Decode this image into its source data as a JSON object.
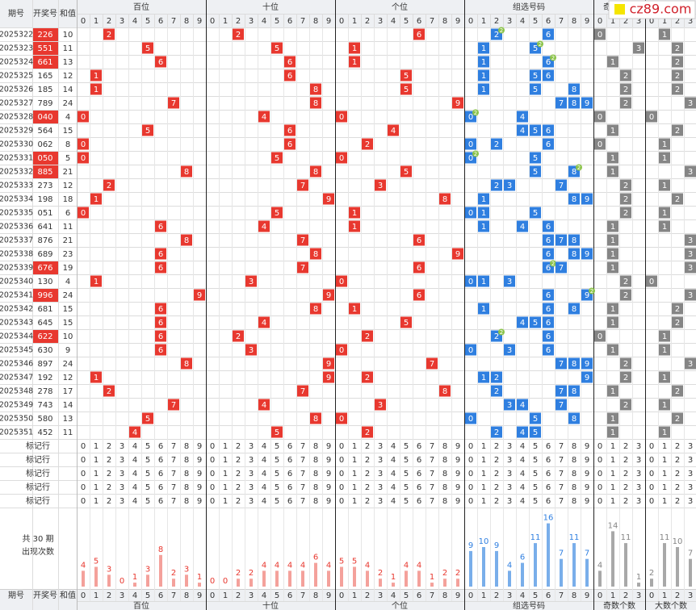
{
  "header": {
    "period": "期号",
    "number": "开奖号",
    "sum": "和值",
    "groups": [
      "百位",
      "十位",
      "个位",
      "组选号码",
      "奇数个数",
      "大数个数"
    ],
    "digits": [
      0,
      1,
      2,
      3,
      4,
      5,
      6,
      7,
      8,
      9
    ],
    "count_digits": [
      0,
      1,
      2,
      3
    ]
  },
  "watermark": "cz89.com",
  "hit_colors": [
    "#e8382f",
    "#e8382f",
    "#e8382f",
    "#2f7fe0",
    "#858585",
    "#858585"
  ],
  "bar_colors": [
    "#f4a19b",
    "#f4a19b",
    "#f4a19b",
    "#79aeea",
    "#a8a8a8",
    "#a8a8a8"
  ],
  "label_colors": [
    "#e8382f",
    "#e8382f",
    "#e8382f",
    "#2f7fe0",
    "#858585",
    "#858585"
  ],
  "draws": [
    {
      "period": "2025322",
      "number": "226",
      "sum": 10
    },
    {
      "period": "2025323",
      "number": "551",
      "sum": 11
    },
    {
      "period": "2025324",
      "number": "661",
      "sum": 13
    },
    {
      "period": "2025325",
      "number": "165",
      "sum": 12
    },
    {
      "period": "2025326",
      "number": "185",
      "sum": 14
    },
    {
      "period": "2025327",
      "number": "789",
      "sum": 24
    },
    {
      "period": "2025328",
      "number": "040",
      "sum": 4
    },
    {
      "period": "2025329",
      "number": "564",
      "sum": 15
    },
    {
      "period": "2025330",
      "number": "062",
      "sum": 8
    },
    {
      "period": "2025331",
      "number": "050",
      "sum": 5
    },
    {
      "period": "2025332",
      "number": "885",
      "sum": 21
    },
    {
      "period": "2025333",
      "number": "273",
      "sum": 12
    },
    {
      "period": "2025334",
      "number": "198",
      "sum": 18
    },
    {
      "period": "2025335",
      "number": "051",
      "sum": 6
    },
    {
      "period": "2025336",
      "number": "641",
      "sum": 11
    },
    {
      "period": "2025337",
      "number": "876",
      "sum": 21
    },
    {
      "period": "2025338",
      "number": "689",
      "sum": 23
    },
    {
      "period": "2025339",
      "number": "676",
      "sum": 19
    },
    {
      "period": "2025340",
      "number": "130",
      "sum": 4
    },
    {
      "period": "2025341",
      "number": "996",
      "sum": 24
    },
    {
      "period": "2025342",
      "number": "681",
      "sum": 15
    },
    {
      "period": "2025343",
      "number": "645",
      "sum": 15
    },
    {
      "period": "2025344",
      "number": "622",
      "sum": 10
    },
    {
      "period": "2025345",
      "number": "630",
      "sum": 9
    },
    {
      "period": "2025346",
      "number": "897",
      "sum": 24
    },
    {
      "period": "2025347",
      "number": "192",
      "sum": 12
    },
    {
      "period": "2025348",
      "number": "278",
      "sum": 17
    },
    {
      "period": "2025349",
      "number": "743",
      "sum": 14
    },
    {
      "period": "2025350",
      "number": "580",
      "sum": 13
    },
    {
      "period": "2025351",
      "number": "452",
      "sum": 11
    }
  ],
  "mark_rows": [
    "标记行",
    "标记行",
    "标记行",
    "标记行",
    "标记行"
  ],
  "stats": {
    "label1": "共 30 期",
    "label2": "出现次数",
    "counts": [
      [
        4,
        5,
        3,
        0,
        1,
        3,
        8,
        2,
        3,
        1
      ],
      [
        0,
        0,
        2,
        2,
        4,
        4,
        4,
        4,
        6,
        4
      ],
      [
        5,
        5,
        4,
        2,
        1,
        4,
        4,
        1,
        2,
        2
      ],
      [
        9,
        10,
        9,
        4,
        6,
        11,
        16,
        7,
        11,
        7
      ],
      [
        4,
        14,
        11,
        1
      ],
      [
        2,
        11,
        10,
        7
      ]
    ]
  }
}
